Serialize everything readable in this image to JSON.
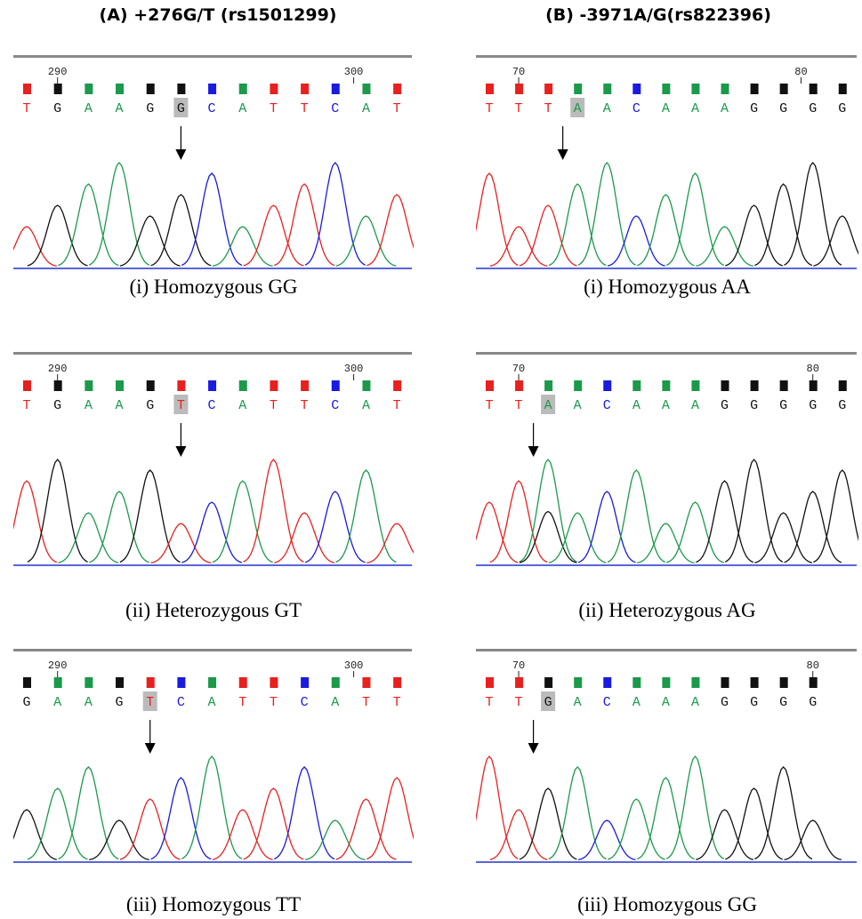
{
  "columns": [
    {
      "title": "(A)  +276G/T (rs1501299)",
      "panels": [
        {
          "ruler": [
            "290",
            "300"
          ],
          "bases": [
            "T",
            "G",
            "A",
            "A",
            "G",
            "G",
            "C",
            "A",
            "T",
            "T",
            "C",
            "A",
            "T"
          ],
          "caption": "(i) Homozygous GG"
        },
        {
          "ruler": [
            "290",
            "300"
          ],
          "bases": [
            "T",
            "G",
            "A",
            "A",
            "G",
            "T",
            "C",
            "A",
            "T",
            "T",
            "C",
            "A",
            "T"
          ],
          "caption": "(ii) Heterozygous GT"
        },
        {
          "ruler": [
            "290",
            "300"
          ],
          "bases": [
            "G",
            "A",
            "A",
            "G",
            "T",
            "C",
            "A",
            "T",
            "T",
            "C",
            "A",
            "T",
            "T"
          ],
          "caption": "(iii) Homozygous TT"
        }
      ]
    },
    {
      "title": "(B) -3971A/G(rs822396)",
      "panels": [
        {
          "ruler": [
            "70",
            "80"
          ],
          "bases": [
            "T",
            "T",
            "T",
            "A",
            "A",
            "C",
            "A",
            "A",
            "A",
            "G",
            "G",
            "G",
            "G"
          ],
          "caption": "(i) Homozygous AA"
        },
        {
          "ruler": [
            "70",
            "80"
          ],
          "bases": [
            "T",
            "T",
            "A",
            "A",
            "C",
            "A",
            "A",
            "A",
            "G",
            "G",
            "G",
            "G",
            "G"
          ],
          "caption": "(ii) Heterozygous AG"
        },
        {
          "ruler": [
            "70",
            "80"
          ],
          "bases": [
            "T",
            "T",
            "G",
            "A",
            "C",
            "A",
            "A",
            "A",
            "G",
            "G",
            "G",
            "G"
          ],
          "caption": "(iii) Homozygous GG"
        }
      ]
    }
  ]
}
